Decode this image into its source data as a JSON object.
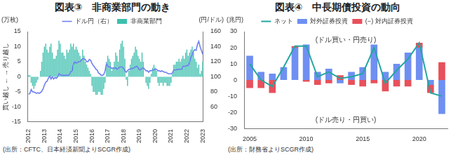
{
  "chart_data": [
    {
      "type": "bar",
      "title": "図表③　非商業部門の動き",
      "y_unit": "(万枚)",
      "ylabel": "買い越し ← → 売り越し",
      "y2_unit": "(円/ドル)",
      "categories": [
        "2012",
        null,
        null,
        null,
        null,
        null,
        null,
        null,
        null,
        null,
        null,
        null,
        "2013",
        null,
        null,
        null,
        null,
        null,
        null,
        null,
        null,
        null,
        null,
        null,
        "2014",
        null,
        null,
        null,
        null,
        null,
        null,
        null,
        null,
        null,
        null,
        null,
        "2015",
        null,
        null,
        null,
        null,
        null,
        null,
        null,
        null,
        null,
        null,
        null,
        "2016",
        null,
        null,
        null,
        null,
        null,
        null,
        null,
        null,
        null,
        null,
        null,
        "2017",
        null,
        null,
        null,
        null,
        null,
        null,
        null,
        null,
        null,
        null,
        null,
        "2018",
        null,
        null,
        null,
        null,
        null,
        null,
        null,
        null,
        null,
        null,
        null,
        "2019",
        null,
        null,
        null,
        null,
        null,
        null,
        null,
        null,
        null,
        null,
        null,
        "2020",
        null,
        null,
        null,
        null,
        null,
        null,
        null,
        null,
        null,
        null,
        null,
        "2021",
        null,
        null,
        null,
        null,
        null,
        null,
        null,
        null,
        null,
        null,
        null,
        "2022",
        null,
        null,
        null,
        null,
        null,
        null,
        null,
        null,
        null,
        null,
        null,
        "2023"
      ],
      "series": [
        {
          "name": "非商業部門",
          "type": "bar",
          "color": "#3dbfae",
          "values": [
            0.5,
            0.5,
            -2,
            -3,
            -4,
            -3,
            -2,
            -1,
            0,
            2,
            5,
            8,
            10,
            11,
            9,
            8,
            10,
            11,
            8,
            6,
            6,
            7,
            9,
            12,
            11,
            8,
            8,
            7,
            6,
            9,
            8,
            9,
            11,
            10,
            11,
            9,
            10,
            9,
            8,
            7,
            6,
            9,
            7,
            5,
            4,
            3,
            2,
            1,
            -3,
            -5,
            -5,
            -6,
            -6,
            -5,
            -5,
            -6,
            -6,
            -4,
            -2,
            5,
            7,
            6,
            5,
            2,
            3,
            5,
            8,
            7,
            5,
            9,
            11,
            12,
            10,
            6,
            -1,
            -3,
            2,
            4,
            6,
            7,
            8,
            10,
            9,
            7,
            6,
            5,
            8,
            5,
            0,
            -2,
            -3,
            -4,
            -2,
            1,
            3,
            4,
            3,
            2,
            -2,
            -3,
            -2,
            -2,
            -3,
            -2,
            -2,
            -3,
            -3,
            -3,
            -2,
            1,
            4,
            4,
            5,
            5,
            6,
            5,
            6,
            7,
            6,
            8,
            9,
            7,
            8,
            9,
            10,
            8,
            6,
            5,
            3,
            4,
            1,
            2,
            5
          ]
        },
        {
          "name": "ドル円（右）",
          "type": "line",
          "color": "#6f7ff0",
          "axis": "y2",
          "values": [
            77,
            78,
            83,
            80,
            80,
            79,
            78,
            79,
            78,
            79,
            81,
            84,
            89,
            93,
            94,
            98,
            101,
            97,
            100,
            97,
            99,
            98,
            100,
            104,
            103,
            102,
            102,
            102,
            102,
            102,
            102,
            103,
            107,
            108,
            117,
            120,
            118,
            119,
            120,
            120,
            122,
            124,
            124,
            123,
            120,
            120,
            123,
            122,
            118,
            115,
            113,
            110,
            109,
            105,
            104,
            102,
            102,
            103,
            108,
            117,
            114,
            113,
            113,
            111,
            112,
            111,
            112,
            110,
            111,
            113,
            113,
            113,
            111,
            108,
            106,
            108,
            110,
            110,
            111,
            111,
            112,
            113,
            114,
            112,
            109,
            110,
            111,
            112,
            110,
            108,
            108,
            106,
            108,
            108,
            109,
            109,
            110,
            110,
            108,
            108,
            107,
            108,
            107,
            106,
            106,
            105,
            104,
            104,
            104,
            105,
            109,
            109,
            109,
            110,
            110,
            110,
            110,
            114,
            114,
            114,
            115,
            115,
            119,
            126,
            129,
            134,
            136,
            135,
            143,
            147,
            140,
            135,
            130
          ]
        }
      ],
      "ylim": [
        -15,
        15
      ],
      "yticks": [
        -15,
        -10,
        -5,
        0,
        5,
        10,
        15
      ],
      "y2lim": [
        40,
        160
      ],
      "y2ticks": [
        60,
        80,
        100,
        120,
        140,
        160
      ],
      "grid": false,
      "legend": "top",
      "source": "(出所：CFTC、日本経済新聞よりSCGR作成)"
    },
    {
      "type": "bar",
      "title": "図表④　中長期債投資の動向",
      "y_unit": "(兆円)",
      "categories": [
        "2005",
        null,
        null,
        null,
        null,
        "2010",
        null,
        null,
        null,
        null,
        "2015",
        null,
        null,
        null,
        null,
        "2020",
        null,
        null
      ],
      "series": [
        {
          "name": "対外証券投資",
          "type": "bar",
          "color": "#6f8ff2",
          "values": [
            15,
            5,
            4,
            8,
            20,
            22,
            5,
            7,
            -2,
            5,
            8,
            22,
            5,
            10,
            17,
            20,
            -3,
            -21
          ]
        },
        {
          "name": "(−) 対内証券投資",
          "type": "bar",
          "color": "#e8505b",
          "values": [
            -5,
            -5,
            -8,
            0,
            1,
            -1,
            -3,
            -2,
            3,
            -3,
            -4,
            -2,
            -7,
            -4,
            -4,
            3,
            -5,
            11
          ]
        },
        {
          "name": "ネット",
          "type": "line",
          "color": "#22a6a0",
          "values": [
            10,
            0,
            -4,
            8,
            21,
            21,
            2,
            5,
            1,
            2,
            4,
            20,
            -2,
            6,
            13,
            23,
            -8,
            -10
          ]
        }
      ],
      "ylim": [
        -30,
        30
      ],
      "yticks": [
        -30,
        -20,
        -10,
        0,
        10,
        20,
        30
      ],
      "stacked": true,
      "grid": false,
      "legend": "top",
      "annotations": [
        "(ドル買い・円売り)",
        "(ドル売り・円買い)"
      ],
      "source": "(出所：財務省よりSCGR作成)"
    }
  ]
}
